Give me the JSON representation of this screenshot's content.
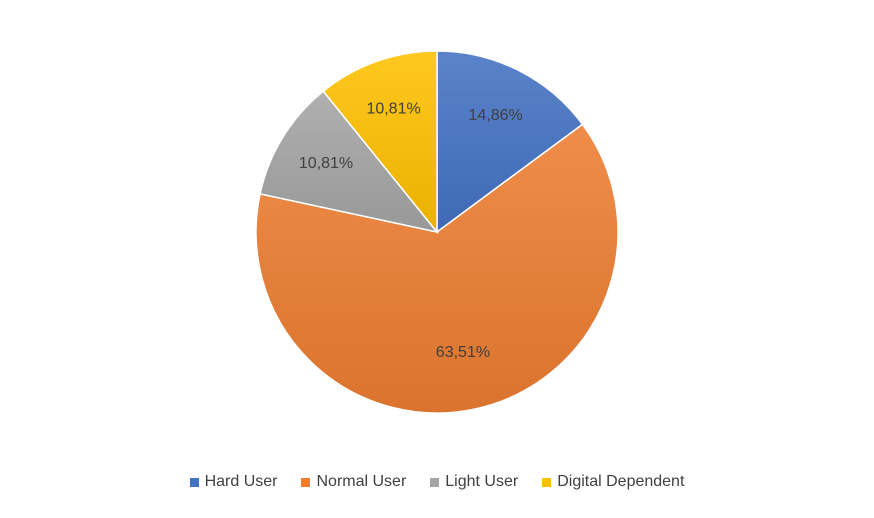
{
  "chart_data": {
    "type": "pie",
    "categories": [
      "Hard User",
      "Normal User",
      "Light User",
      "Digital Dependent"
    ],
    "values": [
      14.86,
      63.51,
      10.81,
      10.81
    ],
    "data_labels": [
      "14,86%",
      "63,51%",
      "10,81%",
      "10,81%"
    ],
    "colors": [
      "#4472C4",
      "#ED7D31",
      "#A5A5A5",
      "#FFC000"
    ],
    "legend_position": "bottom",
    "start": "top, clockwise"
  }
}
